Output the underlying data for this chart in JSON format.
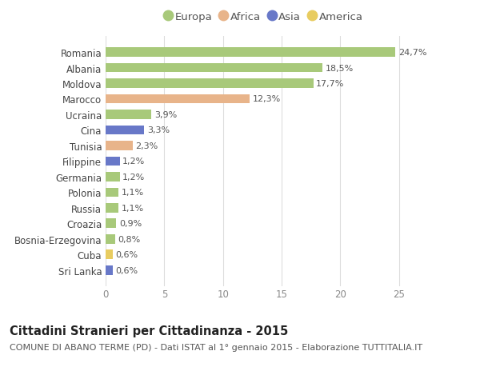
{
  "countries": [
    "Romania",
    "Albania",
    "Moldova",
    "Marocco",
    "Ucraina",
    "Cina",
    "Tunisia",
    "Filippine",
    "Germania",
    "Polonia",
    "Russia",
    "Croazia",
    "Bosnia-Erzegovina",
    "Cuba",
    "Sri Lanka"
  ],
  "values": [
    24.7,
    18.5,
    17.7,
    12.3,
    3.9,
    3.3,
    2.3,
    1.2,
    1.2,
    1.1,
    1.1,
    0.9,
    0.8,
    0.6,
    0.6
  ],
  "labels": [
    "24,7%",
    "18,5%",
    "17,7%",
    "12,3%",
    "3,9%",
    "3,3%",
    "2,3%",
    "1,2%",
    "1,2%",
    "1,1%",
    "1,1%",
    "0,9%",
    "0,8%",
    "0,6%",
    "0,6%"
  ],
  "continents": [
    "Europa",
    "Europa",
    "Europa",
    "Africa",
    "Europa",
    "Asia",
    "Africa",
    "Asia",
    "Europa",
    "Europa",
    "Europa",
    "Europa",
    "Europa",
    "America",
    "Asia"
  ],
  "continent_colors": {
    "Europa": "#a8c97a",
    "Africa": "#e8b48a",
    "Asia": "#6878c8",
    "America": "#e8cc60"
  },
  "legend_order": [
    "Europa",
    "Africa",
    "Asia",
    "America"
  ],
  "xlim": [
    0,
    27
  ],
  "xticks": [
    0,
    5,
    10,
    15,
    20,
    25
  ],
  "title": "Cittadini Stranieri per Cittadinanza - 2015",
  "subtitle": "COMUNE DI ABANO TERME (PD) - Dati ISTAT al 1° gennaio 2015 - Elaborazione TUTTITALIA.IT",
  "background_color": "#ffffff",
  "bar_height": 0.6,
  "title_fontsize": 10.5,
  "subtitle_fontsize": 8,
  "label_fontsize": 8,
  "tick_fontsize": 8.5,
  "legend_fontsize": 9.5
}
